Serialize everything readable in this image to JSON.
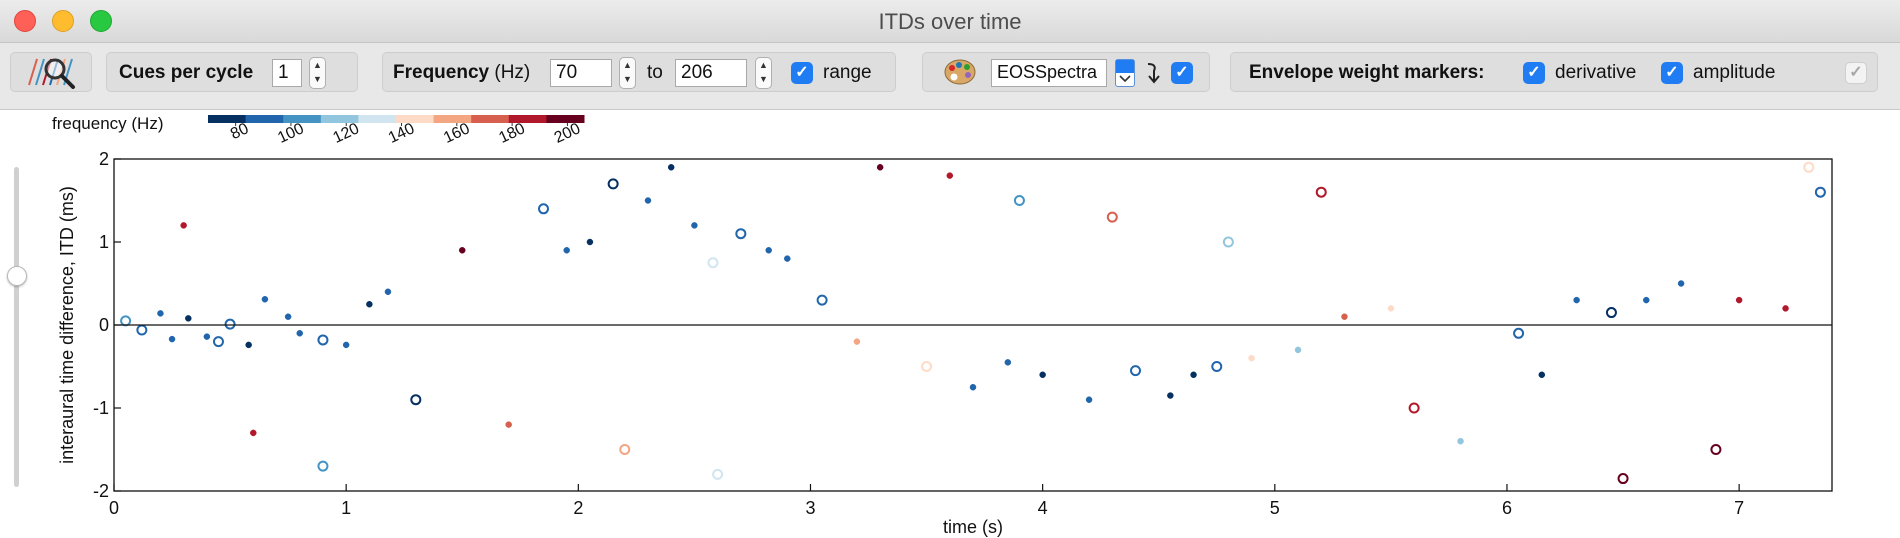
{
  "window": {
    "title": "ITDs over time"
  },
  "toolbar": {
    "cues_label": "Cues per cycle",
    "cues_value": "1",
    "frequency_label": "Frequency",
    "frequency_unit": "(Hz)",
    "freq_from": "70",
    "to_label": "to",
    "freq_to": "206",
    "range_label": "range",
    "colormap_value": "EOSSpectra",
    "envelope_label": "Envelope weight markers:",
    "derivative_label": "derivative",
    "amplitude_label": "amplitude",
    "icons": {
      "app": "sound-source-magnifier-icon",
      "palette": "palette-icon",
      "reverse": "reverse-arrow-icon"
    }
  },
  "colors": {
    "colorbar": [
      "#053061",
      "#2166ac",
      "#4393c3",
      "#92c5de",
      "#d1e5f0",
      "#fddbc7",
      "#f4a582",
      "#d6604d",
      "#b2182b",
      "#67001f"
    ],
    "window_bg": "#ffffff",
    "accent": "#1f7cf3"
  },
  "chart_data": {
    "type": "scatter",
    "xlabel": "time (s)",
    "ylabel": "interaural time difference, ITD (ms)",
    "xlim": [
      0,
      7.4
    ],
    "ylim": [
      -2,
      2
    ],
    "xticks": [
      0,
      1,
      2,
      3,
      4,
      5,
      6,
      7
    ],
    "yticks": [
      -2,
      -1,
      0,
      1,
      2
    ],
    "zero_line": true,
    "grid": false,
    "colorbar": {
      "label": "frequency (Hz)",
      "ticks": [
        80,
        100,
        120,
        140,
        160,
        180,
        200
      ],
      "range": [
        70,
        206
      ],
      "placement": "top-left"
    },
    "series": [
      {
        "points": [
          [
            0.05,
            0.05,
            100
          ],
          [
            0.12,
            -0.06,
            85
          ],
          [
            0.2,
            0.14,
            92
          ],
          [
            0.25,
            -0.17,
            88
          ],
          [
            0.32,
            0.08,
            82
          ],
          [
            0.4,
            -0.14,
            90
          ],
          [
            0.45,
            -0.2,
            84
          ],
          [
            0.5,
            0.01,
            96
          ],
          [
            0.58,
            -0.24,
            80
          ],
          [
            0.65,
            0.31,
            86
          ],
          [
            0.75,
            0.1,
            90
          ],
          [
            0.8,
            -0.1,
            88
          ],
          [
            0.9,
            -0.18,
            94
          ],
          [
            1.0,
            -0.24,
            84
          ],
          [
            1.1,
            0.25,
            82
          ],
          [
            1.18,
            0.4,
            86
          ],
          [
            1.85,
            1.4,
            90
          ],
          [
            1.95,
            0.9,
            84
          ],
          [
            2.05,
            1.0,
            82
          ],
          [
            2.15,
            1.7,
            80
          ],
          [
            2.3,
            1.5,
            86
          ],
          [
            2.4,
            1.9,
            80
          ],
          [
            2.5,
            1.2,
            84
          ],
          [
            2.58,
            0.75,
            128
          ],
          [
            2.7,
            1.1,
            90
          ],
          [
            2.82,
            0.9,
            84
          ],
          [
            2.9,
            0.8,
            88
          ],
          [
            3.05,
            0.3,
            96
          ],
          [
            3.2,
            -0.2,
            160
          ],
          [
            3.5,
            -0.5,
            150
          ],
          [
            3.7,
            -0.75,
            84
          ],
          [
            3.85,
            -0.45,
            86
          ],
          [
            4.0,
            -0.6,
            82
          ],
          [
            4.2,
            -0.9,
            86
          ],
          [
            4.4,
            -0.55,
            84
          ],
          [
            4.55,
            -0.85,
            80
          ],
          [
            4.65,
            -0.6,
            82
          ],
          [
            4.75,
            -0.5,
            88
          ],
          [
            4.9,
            -0.4,
            140
          ],
          [
            5.1,
            -0.3,
            120
          ],
          [
            5.3,
            0.1,
            170
          ],
          [
            5.5,
            0.2,
            150
          ],
          [
            6.05,
            -0.1,
            86
          ],
          [
            6.15,
            -0.6,
            82
          ],
          [
            6.3,
            0.3,
            84
          ],
          [
            6.45,
            0.15,
            82
          ],
          [
            6.6,
            0.3,
            88
          ],
          [
            6.75,
            0.5,
            86
          ],
          [
            7.0,
            0.3,
            180
          ],
          [
            7.2,
            0.2,
            190
          ],
          [
            7.35,
            1.6,
            86
          ],
          [
            0.3,
            1.2,
            180
          ],
          [
            0.6,
            -1.3,
            190
          ],
          [
            1.5,
            0.9,
            200
          ],
          [
            1.7,
            -1.2,
            170
          ],
          [
            2.2,
            -1.5,
            160
          ],
          [
            3.3,
            1.9,
            200
          ],
          [
            3.6,
            1.8,
            180
          ],
          [
            4.3,
            1.3,
            170
          ],
          [
            5.2,
            1.6,
            190
          ],
          [
            5.8,
            -1.4,
            120
          ],
          [
            6.9,
            -1.5,
            200
          ],
          [
            7.3,
            1.9,
            150
          ],
          [
            0.9,
            -1.7,
            110
          ],
          [
            2.6,
            -1.8,
            130
          ],
          [
            3.9,
            1.5,
            100
          ],
          [
            4.8,
            1.0,
            120
          ],
          [
            5.6,
            -1.0,
            180
          ],
          [
            6.5,
            -1.85,
            200
          ],
          [
            1.3,
            -0.9,
            75
          ]
        ]
      }
    ]
  }
}
